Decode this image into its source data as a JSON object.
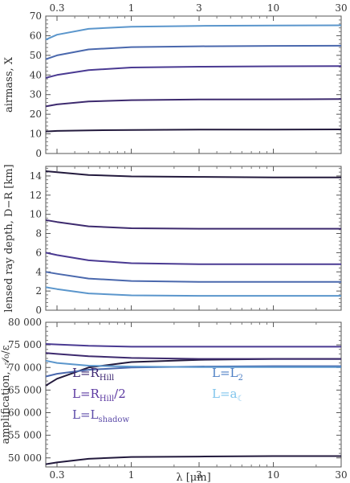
{
  "chart_data": [
    {
      "type": "line",
      "ylabel": "airmass, X",
      "xscale": "log",
      "xlim": [
        0.25,
        30
      ],
      "ylim": [
        0,
        70
      ],
      "yticks": [
        0,
        10,
        20,
        30,
        40,
        50,
        60,
        70
      ],
      "xticks": [
        0.3,
        1,
        3,
        10,
        30
      ],
      "xtick_labels": [
        "0.3",
        "1",
        "3",
        "10",
        "30"
      ],
      "ytick_labels": [
        "0",
        "10",
        "20",
        "30",
        "40",
        "50",
        "60",
        "70"
      ],
      "series": [
        {
          "color": "#231a3d",
          "x": [
            0.25,
            0.3,
            0.5,
            1,
            3,
            10,
            30
          ],
          "y": [
            11.2,
            11.5,
            11.8,
            12.0,
            12.2,
            12.2,
            12.3
          ]
        },
        {
          "color": "#3d2a6e",
          "x": [
            0.25,
            0.3,
            0.5,
            1,
            3,
            10,
            30
          ],
          "y": [
            24,
            25,
            26.5,
            27.2,
            27.5,
            27.6,
            27.7
          ]
        },
        {
          "color": "#4a3a92",
          "x": [
            0.25,
            0.3,
            0.5,
            1,
            3,
            10,
            30
          ],
          "y": [
            38.5,
            40,
            42.5,
            43.8,
            44.2,
            44.4,
            44.5
          ]
        },
        {
          "color": "#4a68ad",
          "x": [
            0.25,
            0.3,
            0.5,
            1,
            3,
            10,
            30
          ],
          "y": [
            48,
            50,
            53,
            54.2,
            54.6,
            54.8,
            54.9
          ]
        },
        {
          "color": "#5b96cc",
          "x": [
            0.25,
            0.3,
            0.5,
            1,
            3,
            10,
            30
          ],
          "y": [
            58,
            60.5,
            63.5,
            64.6,
            65.0,
            65.2,
            65.3
          ]
        }
      ]
    },
    {
      "type": "line",
      "ylabel": "lensed ray depth, D−R [km]",
      "xscale": "log",
      "xlim": [
        0.25,
        30
      ],
      "ylim": [
        0,
        15
      ],
      "yticks": [
        0,
        2,
        4,
        6,
        8,
        10,
        12,
        14
      ],
      "xticks": [
        0.3,
        1,
        3,
        10,
        30
      ],
      "ytick_labels": [
        "0",
        "2",
        "4",
        "6",
        "8",
        "10",
        "12",
        "14"
      ],
      "series": [
        {
          "color": "#231a3d",
          "x": [
            0.25,
            0.3,
            0.5,
            1,
            3,
            10,
            30
          ],
          "y": [
            14.5,
            14.4,
            14.1,
            13.95,
            13.9,
            13.85,
            13.85
          ]
        },
        {
          "color": "#3d2a6e",
          "x": [
            0.25,
            0.3,
            0.5,
            1,
            3,
            10,
            30
          ],
          "y": [
            9.4,
            9.2,
            8.75,
            8.55,
            8.5,
            8.5,
            8.5
          ]
        },
        {
          "color": "#4a3a92",
          "x": [
            0.25,
            0.3,
            0.5,
            1,
            3,
            10,
            30
          ],
          "y": [
            6.0,
            5.75,
            5.2,
            4.9,
            4.8,
            4.8,
            4.8
          ]
        },
        {
          "color": "#4a68ad",
          "x": [
            0.25,
            0.3,
            0.5,
            1,
            3,
            10,
            30
          ],
          "y": [
            4.0,
            3.8,
            3.3,
            3.05,
            2.95,
            2.95,
            2.95
          ]
        },
        {
          "color": "#5b96cc",
          "x": [
            0.25,
            0.3,
            0.5,
            1,
            3,
            10,
            30
          ],
          "y": [
            2.4,
            2.2,
            1.75,
            1.55,
            1.5,
            1.5,
            1.5
          ]
        }
      ]
    },
    {
      "type": "line",
      "ylabel": "amplification, 𝒜₀/ε",
      "xlabel": "λ [μm]",
      "xscale": "log",
      "xlim": [
        0.25,
        30
      ],
      "ylim": [
        48000,
        80000
      ],
      "yticks": [
        50000,
        55000,
        60000,
        65000,
        70000,
        75000,
        80000
      ],
      "xticks": [
        0.3,
        1,
        3,
        10,
        30
      ],
      "xtick_labels": [
        "0.3",
        "1",
        "3",
        "10",
        "30"
      ],
      "ytick_labels": [
        "50 000",
        "55 000",
        "60 000",
        "65 000",
        "70 000",
        "75 000",
        "80 000"
      ],
      "series": [
        {
          "color": "#231a3d",
          "x": [
            0.25,
            0.3,
            0.5,
            1,
            3,
            10,
            30
          ],
          "y": [
            48600,
            49000,
            49800,
            50200,
            50300,
            50400,
            50400
          ]
        },
        {
          "color": "#231a3d",
          "x": [
            0.25,
            0.3,
            0.5,
            1,
            3,
            10,
            30
          ],
          "y": [
            66000,
            67500,
            70000,
            71200,
            71700,
            71900,
            71900
          ]
        },
        {
          "color": "#3d2a6e",
          "x": [
            0.25,
            0.3,
            0.5,
            1,
            3,
            10,
            30
          ],
          "y": [
            73200,
            73000,
            72500,
            72100,
            71900,
            71900,
            71900
          ]
        },
        {
          "color": "#4a3a92",
          "x": [
            0.25,
            0.3,
            0.5,
            1,
            3,
            10,
            30
          ],
          "y": [
            75200,
            75100,
            74800,
            74600,
            74600,
            74600,
            74600
          ]
        },
        {
          "color": "#4a68ad",
          "x": [
            0.25,
            0.3,
            0.5,
            1,
            3,
            10,
            30
          ],
          "y": [
            68000,
            68600,
            69500,
            70000,
            70200,
            70300,
            70300
          ]
        },
        {
          "color": "#5b96cc",
          "x": [
            0.25,
            0.3,
            0.5,
            1,
            3,
            10,
            30
          ],
          "y": [
            71500,
            71000,
            70400,
            70200,
            70100,
            70100,
            70100
          ]
        }
      ],
      "legend": [
        {
          "main": "L=R",
          "sub": "Hill",
          "rest": "",
          "color": "#3b2570"
        },
        {
          "main": "L=R",
          "sub": "Hill",
          "rest": "/2",
          "color": "#5a37a0"
        },
        {
          "main": "L=L",
          "sub": "shadow",
          "rest": "",
          "color": "#5b4aa8"
        },
        {
          "main": "L=L",
          "sub": "2",
          "rest": "",
          "color": "#4e7fc4"
        },
        {
          "main": "L=a",
          "sub": "☾",
          "rest": "",
          "color": "#7fc4ec"
        }
      ]
    }
  ]
}
